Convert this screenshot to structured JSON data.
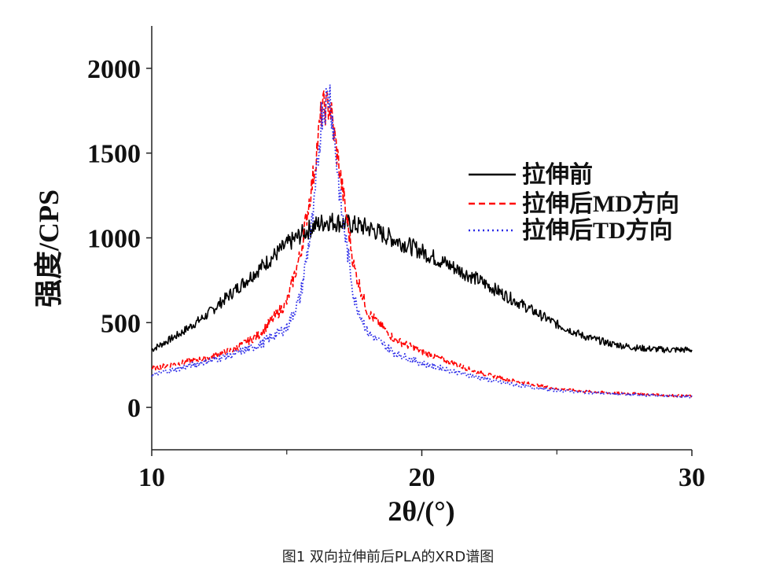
{
  "caption": "图1 双向拉伸前后PLA的XRD谱图",
  "chart_data": {
    "type": "line",
    "title": "",
    "xlabel": "2θ/(°)",
    "ylabel": "强度/CPS",
    "xlim": [
      10,
      30
    ],
    "ylim": [
      -250,
      2250
    ],
    "x_ticks": [
      10,
      20,
      30
    ],
    "x_minor_ticks": [
      15,
      25
    ],
    "y_ticks": [
      0,
      500,
      1000,
      1500,
      2000
    ],
    "x_tick_labels": [
      "10",
      "20",
      "30"
    ],
    "y_tick_labels": [
      "0",
      "500",
      "1000",
      "1500",
      "2000"
    ],
    "legend_position": "right",
    "series": [
      {
        "name": "拉伸前",
        "color": "#000000",
        "style": "solid",
        "x": [
          10,
          11,
          12,
          13,
          14,
          15,
          16,
          16.5,
          17,
          18,
          19,
          20,
          21,
          22,
          23,
          24,
          25,
          26,
          27,
          28,
          29,
          30
        ],
        "y": [
          340,
          430,
          540,
          680,
          820,
          960,
          1070,
          1100,
          1090,
          1060,
          990,
          920,
          840,
          760,
          670,
          580,
          490,
          420,
          375,
          350,
          340,
          340
        ]
      },
      {
        "name": "拉伸后MD方向",
        "color": "#ff0000",
        "style": "dashed",
        "x": [
          10,
          11,
          12,
          13,
          14,
          15,
          15.5,
          16,
          16.3,
          16.6,
          17,
          17.5,
          18,
          19,
          20,
          21,
          22,
          23,
          24,
          25,
          26,
          27,
          28,
          29,
          30
        ],
        "y": [
          230,
          260,
          290,
          340,
          430,
          620,
          900,
          1380,
          1760,
          1780,
          1350,
          820,
          560,
          400,
          330,
          270,
          210,
          170,
          140,
          110,
          95,
          85,
          80,
          72,
          65
        ]
      },
      {
        "name": "拉伸后TD方向",
        "color": "#2a2ae8",
        "style": "dotted",
        "x": [
          10,
          11,
          12,
          13,
          14,
          15,
          15.5,
          16,
          16.3,
          16.6,
          17,
          17.5,
          18,
          19,
          20,
          21,
          22,
          23,
          24,
          25,
          26,
          27,
          28,
          29,
          30
        ],
        "y": [
          190,
          230,
          270,
          310,
          370,
          470,
          650,
          1150,
          1750,
          1850,
          1200,
          640,
          440,
          320,
          260,
          220,
          180,
          145,
          120,
          100,
          90,
          80,
          75,
          68,
          62
        ]
      }
    ]
  }
}
